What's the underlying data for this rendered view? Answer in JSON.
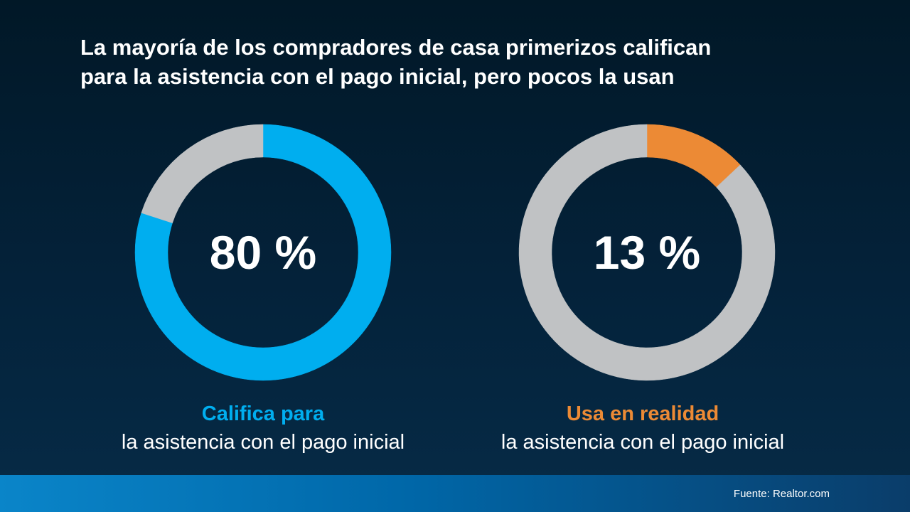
{
  "title": {
    "line1": "La mayoría de los compradores de casa primerizos califican",
    "line2": "para la asistencia con el pago inicial, pero pocos la usan"
  },
  "colors": {
    "qualify": "#00aeef",
    "use": "#ec8a35",
    "remainder": "#c0c2c4",
    "background": "#03203a"
  },
  "chart_data": [
    {
      "type": "pie",
      "style": "donut",
      "value": 80,
      "remainder": 20,
      "label": "80 %",
      "caption_head": "Califica para",
      "caption_sub": "la asistencia con el pago inicial"
    },
    {
      "type": "pie",
      "style": "donut",
      "value": 13,
      "remainder": 87,
      "label": "13 %",
      "caption_head": "Usa en realidad",
      "caption_sub": "la asistencia con el pago inicial"
    }
  ],
  "footer": {
    "source": "Fuente: Realtor.com"
  }
}
